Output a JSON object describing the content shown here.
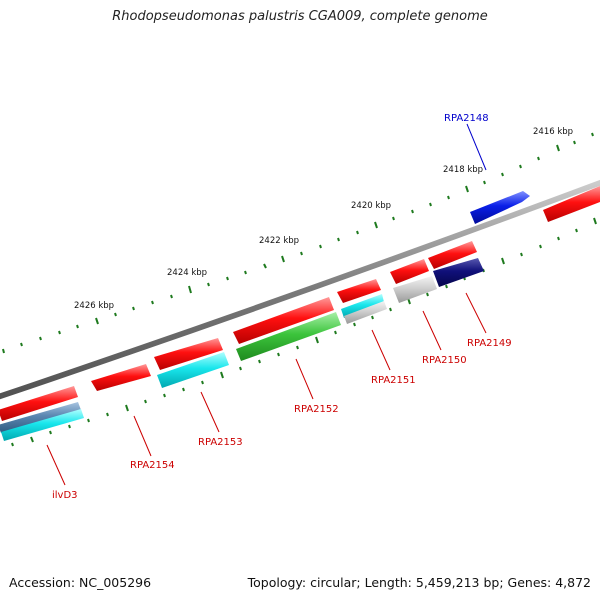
{
  "title": "Rhodopseudomonas palustris CGA009, complete genome",
  "footer": {
    "accession": "Accession: NC_005296",
    "summary": "Topology: circular; Length: 5,459,213 bp; Genes: 4,872"
  },
  "scale_labels": [
    "2416 kbp",
    "2418 kbp",
    "2420 kbp",
    "2422 kbp",
    "2424 kbp",
    "2426 kbp"
  ],
  "gene_labels": [
    {
      "name": "RPA2148",
      "color": "#0000cc"
    },
    {
      "name": "RPA2149",
      "color": "#cc0000"
    },
    {
      "name": "RPA2150",
      "color": "#cc0000"
    },
    {
      "name": "RPA2151",
      "color": "#cc0000"
    },
    {
      "name": "RPA2152",
      "color": "#cc0000"
    },
    {
      "name": "RPA2153",
      "color": "#cc0000"
    },
    {
      "name": "RPA2154",
      "color": "#cc0000"
    },
    {
      "name": "ilvD3",
      "color": "#cc0000"
    }
  ],
  "colors": {
    "backbone": "#8a8a8a",
    "tick": "#1e7a1e",
    "red": "#e80000",
    "blue": "#0a1fe8",
    "navy": "#0c0c7a",
    "cyan": "#19e6ec",
    "green": "#3cc43c",
    "steel": "#5a86b0",
    "silver": "#c8c8c8"
  }
}
